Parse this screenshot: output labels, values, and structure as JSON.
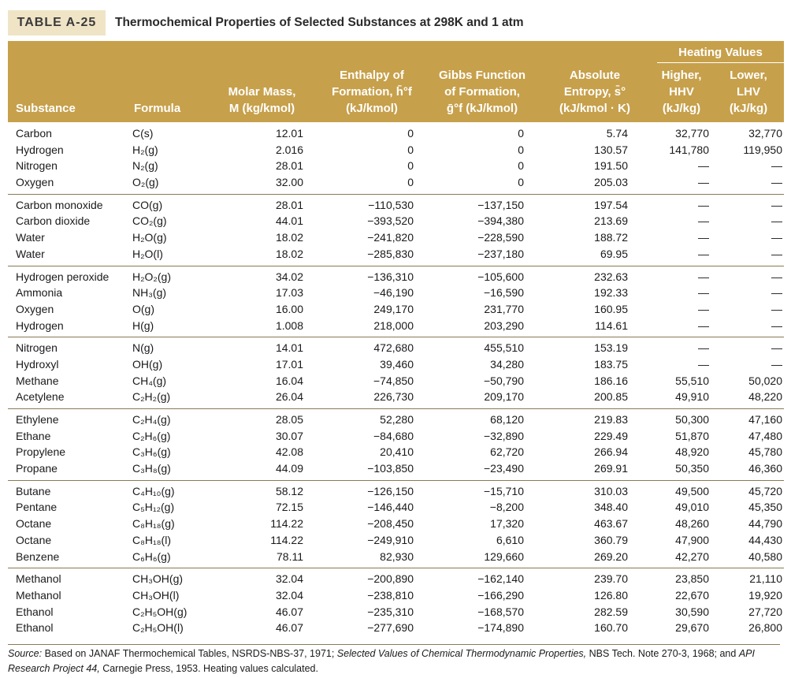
{
  "header": {
    "table_label": "TABLE A-25",
    "title": "Thermochemical Properties of Selected Substances at 298K and 1 atm"
  },
  "table": {
    "group_heading": "Heating Values",
    "columns": [
      [
        "Substance"
      ],
      [
        "Formula"
      ],
      [
        "Molar Mass,",
        "M (kg/kmol)"
      ],
      [
        "Enthalpy of",
        "Formation, h̄°f",
        "(kJ/kmol)"
      ],
      [
        "Gibbs Function",
        "of Formation,",
        "ḡ°f (kJ/kmol)"
      ],
      [
        "Absolute",
        "Entropy, s̄°",
        "(kJ/kmol · K)"
      ],
      [
        "Higher,",
        "HHV",
        "(kJ/kg)"
      ],
      [
        "Lower,",
        "LHV",
        "(kJ/kg)"
      ]
    ],
    "groups": [
      [
        [
          "Carbon",
          "C(s)",
          "12.01",
          "0",
          "0",
          "5.74",
          "32,770",
          "32,770"
        ],
        [
          "Hydrogen",
          "H₂(g)",
          "2.016",
          "0",
          "0",
          "130.57",
          "141,780",
          "119,950"
        ],
        [
          "Nitrogen",
          "N₂(g)",
          "28.01",
          "0",
          "0",
          "191.50",
          "—",
          "—"
        ],
        [
          "Oxygen",
          "O₂(g)",
          "32.00",
          "0",
          "0",
          "205.03",
          "—",
          "—"
        ]
      ],
      [
        [
          "Carbon monoxide",
          "CO(g)",
          "28.01",
          "−110,530",
          "−137,150",
          "197.54",
          "—",
          "—"
        ],
        [
          "Carbon dioxide",
          "CO₂(g)",
          "44.01",
          "−393,520",
          "−394,380",
          "213.69",
          "—",
          "—"
        ],
        [
          "Water",
          "H₂O(g)",
          "18.02",
          "−241,820",
          "−228,590",
          "188.72",
          "—",
          "—"
        ],
        [
          "Water",
          "H₂O(l)",
          "18.02",
          "−285,830",
          "−237,180",
          "69.95",
          "—",
          "—"
        ]
      ],
      [
        [
          "Hydrogen peroxide",
          "H₂O₂(g)",
          "34.02",
          "−136,310",
          "−105,600",
          "232.63",
          "—",
          "—"
        ],
        [
          "Ammonia",
          "NH₃(g)",
          "17.03",
          "−46,190",
          "−16,590",
          "192.33",
          "—",
          "—"
        ],
        [
          "Oxygen",
          "O(g)",
          "16.00",
          "249,170",
          "231,770",
          "160.95",
          "—",
          "—"
        ],
        [
          "Hydrogen",
          "H(g)",
          "1.008",
          "218,000",
          "203,290",
          "114.61",
          "—",
          "—"
        ]
      ],
      [
        [
          "Nitrogen",
          "N(g)",
          "14.01",
          "472,680",
          "455,510",
          "153.19",
          "—",
          "—"
        ],
        [
          "Hydroxyl",
          "OH(g)",
          "17.01",
          "39,460",
          "34,280",
          "183.75",
          "—",
          "—"
        ],
        [
          "Methane",
          "CH₄(g)",
          "16.04",
          "−74,850",
          "−50,790",
          "186.16",
          "55,510",
          "50,020"
        ],
        [
          "Acetylene",
          "C₂H₂(g)",
          "26.04",
          "226,730",
          "209,170",
          "200.85",
          "49,910",
          "48,220"
        ]
      ],
      [
        [
          "Ethylene",
          "C₂H₄(g)",
          "28.05",
          "52,280",
          "68,120",
          "219.83",
          "50,300",
          "47,160"
        ],
        [
          "Ethane",
          "C₂H₆(g)",
          "30.07",
          "−84,680",
          "−32,890",
          "229.49",
          "51,870",
          "47,480"
        ],
        [
          "Propylene",
          "C₃H₆(g)",
          "42.08",
          "20,410",
          "62,720",
          "266.94",
          "48,920",
          "45,780"
        ],
        [
          "Propane",
          "C₃H₈(g)",
          "44.09",
          "−103,850",
          "−23,490",
          "269.91",
          "50,350",
          "46,360"
        ]
      ],
      [
        [
          "Butane",
          "C₄H₁₀(g)",
          "58.12",
          "−126,150",
          "−15,710",
          "310.03",
          "49,500",
          "45,720"
        ],
        [
          "Pentane",
          "C₅H₁₂(g)",
          "72.15",
          "−146,440",
          "−8,200",
          "348.40",
          "49,010",
          "45,350"
        ],
        [
          "Octane",
          "C₈H₁₈(g)",
          "114.22",
          "−208,450",
          "17,320",
          "463.67",
          "48,260",
          "44,790"
        ],
        [
          "Octane",
          "C₈H₁₈(l)",
          "114.22",
          "−249,910",
          "6,610",
          "360.79",
          "47,900",
          "44,430"
        ],
        [
          "Benzene",
          "C₆H₆(g)",
          "78.11",
          "82,930",
          "129,660",
          "269.20",
          "42,270",
          "40,580"
        ]
      ],
      [
        [
          "Methanol",
          "CH₃OH(g)",
          "32.04",
          "−200,890",
          "−162,140",
          "239.70",
          "23,850",
          "21,110"
        ],
        [
          "Methanol",
          "CH₃OH(l)",
          "32.04",
          "−238,810",
          "−166,290",
          "126.80",
          "22,670",
          "19,920"
        ],
        [
          "Ethanol",
          "C₂H₅OH(g)",
          "46.07",
          "−235,310",
          "−168,570",
          "282.59",
          "30,590",
          "27,720"
        ],
        [
          "Ethanol",
          "C₂H₅OH(l)",
          "46.07",
          "−277,690",
          "−174,890",
          "160.70",
          "29,670",
          "26,800"
        ]
      ]
    ]
  },
  "source_note": [
    {
      "text": "Source:",
      "italic": true
    },
    {
      "text": " Based on JANAF Thermochemical Tables, NSRDS-NBS-37, 1971; ",
      "italic": false
    },
    {
      "text": "Selected Values of Chemical Thermodynamic Properties,",
      "italic": true
    },
    {
      "text": " NBS Tech. Note 270-3, 1968; and ",
      "italic": false
    },
    {
      "text": "API Research Project 44,",
      "italic": true
    },
    {
      "text": " Carnegie Press, 1953. Heating values calculated.",
      "italic": false
    }
  ]
}
